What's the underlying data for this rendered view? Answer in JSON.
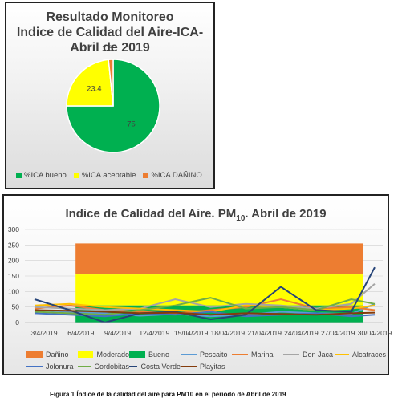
{
  "pie_chart": {
    "title": "Resultado Monitoreo\nIndice de Calidad del Aire-ICA-\nAbril de 2019"
  },
  "line_chart": {
    "title_main": "Indice de Calidad del Aire. PM",
    "title_sub": "10",
    "title_tail": ". Abril de 2019"
  },
  "caption": "Figura 1 Índice de la calidad del aire para PM10 en el periodo de Abril de 2019",
  "chart_data": [
    {
      "type": "pie",
      "title": "Resultado Monitoreo Indice de Calidad del Aire-ICA- Abril de 2019",
      "slices": [
        {
          "label": "%ICA bueno",
          "value": 75,
          "color": "#00b050"
        },
        {
          "label": "%ICA aceptable",
          "value": 23.4,
          "color": "#ffff00"
        },
        {
          "label": "%ICA DAÑINO",
          "value": 1.6,
          "color": "#ed7d31"
        }
      ],
      "legend_position": "bottom"
    },
    {
      "type": "line",
      "title": "Indice de Calidad del Aire. PM10. Abril de 2019",
      "x_ticks": [
        "3/4/2019",
        "6/4/2019",
        "9/4/2019",
        "12/4/2019",
        "15/04/2019",
        "18/04/2019",
        "21/04/2019",
        "24/04/2019",
        "27/04/2019",
        "30/04/2019"
      ],
      "x_range": [
        1,
        30
      ],
      "y_ticks": [
        0,
        50,
        100,
        150,
        200,
        250,
        300
      ],
      "ylim": [
        0,
        300
      ],
      "bands": [
        {
          "name": "Dañino",
          "from": 155,
          "to": 255,
          "color": "#ed7d31"
        },
        {
          "name": "Moderado",
          "from": 55,
          "to": 155,
          "color": "#ffff00"
        },
        {
          "name": "Bueno",
          "from": 0,
          "to": 55,
          "color": "#00b050"
        }
      ],
      "series": [
        {
          "name": "Pescaito",
          "color": "#5b9bd5",
          "points": [
            [
              1,
              40
            ],
            [
              4,
              35
            ],
            [
              7,
              30
            ],
            [
              10,
              22
            ],
            [
              13,
              28
            ],
            [
              16,
              20
            ],
            [
              19,
              25
            ],
            [
              22,
              35
            ],
            [
              25,
              30
            ],
            [
              28,
              28
            ],
            [
              30,
              60
            ]
          ]
        },
        {
          "name": "Marina",
          "color": "#ed7d31",
          "points": [
            [
              1,
              45
            ],
            [
              4,
              55
            ],
            [
              7,
              40
            ],
            [
              10,
              35
            ],
            [
              13,
              30
            ],
            [
              16,
              40
            ],
            [
              19,
              50
            ],
            [
              22,
              75
            ],
            [
              25,
              45
            ],
            [
              28,
              50
            ],
            [
              30,
              40
            ]
          ]
        },
        {
          "name": "Don Jaca",
          "color": "#a5a5a5",
          "points": [
            [
              1,
              50
            ],
            [
              4,
              45
            ],
            [
              7,
              40
            ],
            [
              10,
              45
            ],
            [
              13,
              75
            ],
            [
              16,
              50
            ],
            [
              19,
              60
            ],
            [
              22,
              55
            ],
            [
              25,
              45
            ],
            [
              28,
              60
            ],
            [
              30,
              125
            ]
          ]
        },
        {
          "name": "Alcatraces",
          "color": "#ffc000",
          "points": [
            [
              1,
              55
            ],
            [
              4,
              60
            ],
            [
              7,
              50
            ],
            [
              10,
              45
            ],
            [
              13,
              40
            ],
            [
              16,
              35
            ],
            [
              19,
              55
            ],
            [
              22,
              50
            ],
            [
              25,
              40
            ],
            [
              28,
              45
            ],
            [
              30,
              55
            ]
          ]
        },
        {
          "name": "Jolonura",
          "color": "#4472c4",
          "points": [
            [
              1,
              30
            ],
            [
              4,
              25
            ],
            [
              7,
              20
            ],
            [
              10,
              30
            ],
            [
              13,
              25
            ],
            [
              16,
              35
            ],
            [
              19,
              20
            ],
            [
              22,
              25
            ],
            [
              25,
              30
            ],
            [
              28,
              20
            ],
            [
              30,
              25
            ]
          ]
        },
        {
          "name": "Cordobitas",
          "color": "#70ad47",
          "points": [
            [
              1,
              35
            ],
            [
              4,
              30
            ],
            [
              7,
              25
            ],
            [
              10,
              40
            ],
            [
              13,
              55
            ],
            [
              16,
              80
            ],
            [
              19,
              45
            ],
            [
              22,
              50
            ],
            [
              25,
              40
            ],
            [
              28,
              75
            ],
            [
              30,
              60
            ]
          ]
        },
        {
          "name": "Costa Verde",
          "color": "#264478",
          "points": [
            [
              1,
              75
            ],
            [
              4,
              40
            ],
            [
              7,
              0
            ],
            [
              10,
              30
            ],
            [
              13,
              35
            ],
            [
              16,
              10
            ],
            [
              19,
              25
            ],
            [
              22,
              115
            ],
            [
              25,
              40
            ],
            [
              28,
              35
            ],
            [
              30,
              178
            ]
          ]
        },
        {
          "name": "Playitas",
          "color": "#843c0c",
          "points": [
            [
              1,
              40
            ],
            [
              4,
              38
            ],
            [
              7,
              35
            ],
            [
              10,
              30
            ],
            [
              13,
              32
            ],
            [
              16,
              25
            ],
            [
              19,
              30
            ],
            [
              22,
              28
            ],
            [
              25,
              25
            ],
            [
              28,
              30
            ],
            [
              30,
              32
            ]
          ]
        }
      ],
      "legend_position": "bottom"
    }
  ]
}
